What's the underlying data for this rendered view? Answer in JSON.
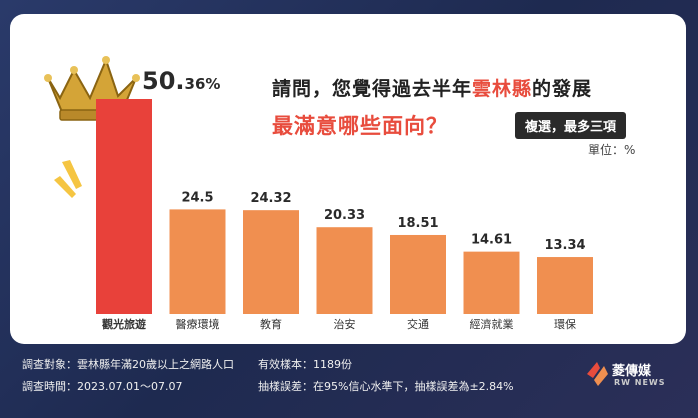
{
  "title": {
    "line1_pre": "請問，您覺得過去半年",
    "line1_highlight": "雲林縣",
    "line1_post": "的發展",
    "line2": "最滿意哪些面向？",
    "tag": "複選，最多三項",
    "unit": "單位：%"
  },
  "chart_data": {
    "type": "bar",
    "categories": [
      "觀光旅遊",
      "醫療環境",
      "教育",
      "治安",
      "交通",
      "經濟就業",
      "環保"
    ],
    "values": [
      50.36,
      24.5,
      24.32,
      20.33,
      18.51,
      14.61,
      13.34
    ],
    "value_labels": [
      {
        "main": "50.",
        "small": "36%"
      },
      {
        "main": "24.5",
        "small": ""
      },
      {
        "main": "24.32",
        "small": ""
      },
      {
        "main": "20.33",
        "small": ""
      },
      {
        "main": "18.51",
        "small": ""
      },
      {
        "main": "14.61",
        "small": ""
      },
      {
        "main": "13.34",
        "small": ""
      }
    ],
    "ylim": [
      0,
      52
    ],
    "colors": {
      "highlight": "#e8413a",
      "normal": "#f08f50"
    }
  },
  "footer": {
    "target": "調查對象：雲林縣年滿20歲以上之網路人口",
    "time": "調查時間：2023.07.01～07.07",
    "sample": "有效樣本：1189份",
    "error": "抽樣誤差：在95%信心水準下，抽樣誤差為±2.84%"
  },
  "logo": {
    "name": "菱傳媒",
    "sub": "RW NEWS"
  }
}
